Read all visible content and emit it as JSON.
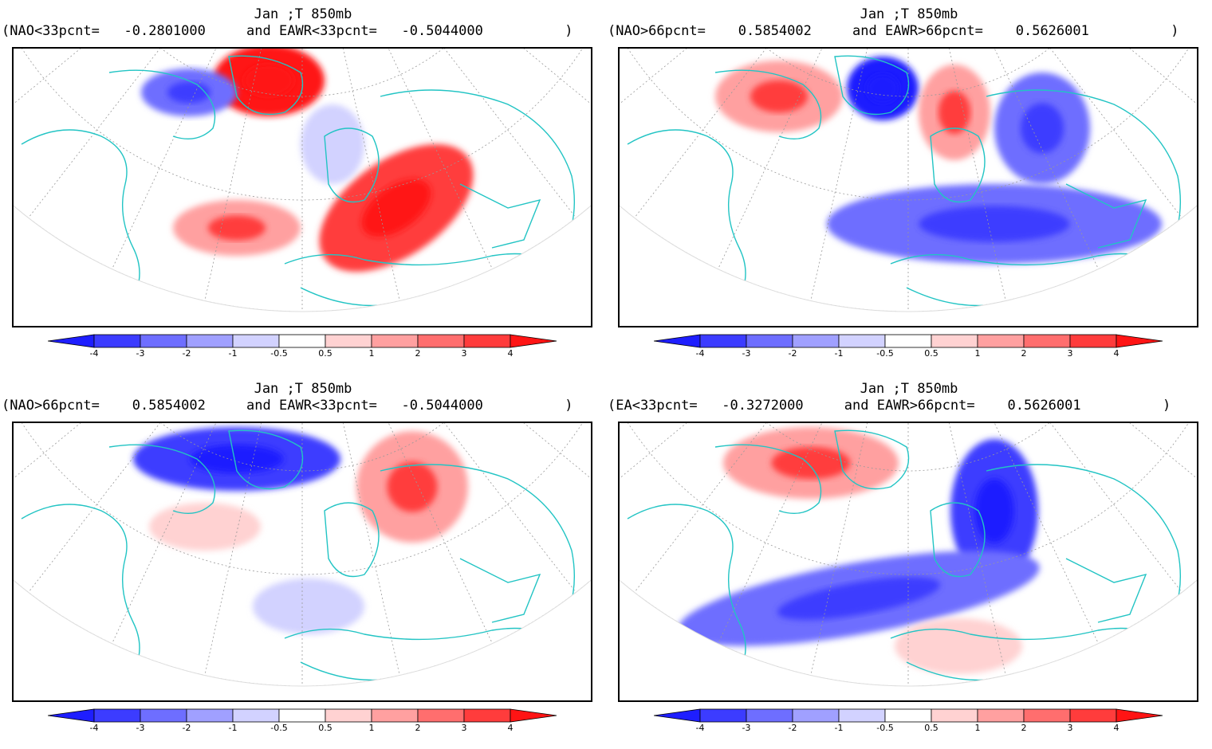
{
  "colorbar": {
    "labels": [
      "-4",
      "-3",
      "-2",
      "-1",
      "-0.5",
      "0.5",
      "1",
      "2",
      "3",
      "4"
    ],
    "colors": [
      "#1e1eff",
      "#3c3cff",
      "#6e6eff",
      "#a0a0ff",
      "#d2d2ff",
      "#ffffff",
      "#ffd2d2",
      "#ffa0a0",
      "#ff6e6e",
      "#ff3c3c",
      "#ff1414"
    ]
  },
  "colors": {
    "land_outline": "#22c4c4",
    "frame": "#000000",
    "grid": "#999999"
  },
  "panels": [
    {
      "title_line1": "Jan ;T 850mb",
      "title_line2": "(NAO<33pcnt=   -0.2801000     and EAWR<33pcnt=   -0.5044000          )",
      "anomalies": [
        {
          "region": "Greenland/Baffin",
          "level": 4
        },
        {
          "region": "Eastern Europe/Russia",
          "level": 3
        },
        {
          "region": "Central Atlantic",
          "level": 2
        },
        {
          "region": "Labrador",
          "level": -2
        },
        {
          "region": "Scandinavia",
          "level": -1
        }
      ]
    },
    {
      "title_line1": "Jan ;T 850mb",
      "title_line2": "(NAO>66pcnt=    0.5854002     and EAWR>66pcnt=    0.5626001          )",
      "anomalies": [
        {
          "region": "Greenland",
          "level": -4
        },
        {
          "region": "Canada",
          "level": 2
        },
        {
          "region": "Scandinavia",
          "level": 2
        },
        {
          "region": "Siberia",
          "level": -2
        },
        {
          "region": "Eurasia/Mediterranean",
          "level": -2
        }
      ]
    },
    {
      "title_line1": "Jan ;T 850mb",
      "title_line2": "(NAO>66pcnt=    0.5854002     and EAWR<33pcnt=   -0.5044000          )",
      "anomalies": [
        {
          "region": "Northern Canada",
          "level": -3
        },
        {
          "region": "Scandinavia/Europe",
          "level": 2
        },
        {
          "region": "Central Atlantic",
          "level": 1
        },
        {
          "region": "Subtropical Atlantic",
          "level": -1
        }
      ]
    },
    {
      "title_line1": "Jan ;T 850mb",
      "title_line2": "(EA<33pcnt=   -0.3272000     and EAWR>66pcnt=    0.5626001          )",
      "anomalies": [
        {
          "region": "Canada/Greenland",
          "level": 2
        },
        {
          "region": "Russia/Eastern Europe",
          "level": -3
        },
        {
          "region": "Atlantic band",
          "level": -2
        },
        {
          "region": "North Africa",
          "level": 1
        }
      ]
    }
  ]
}
